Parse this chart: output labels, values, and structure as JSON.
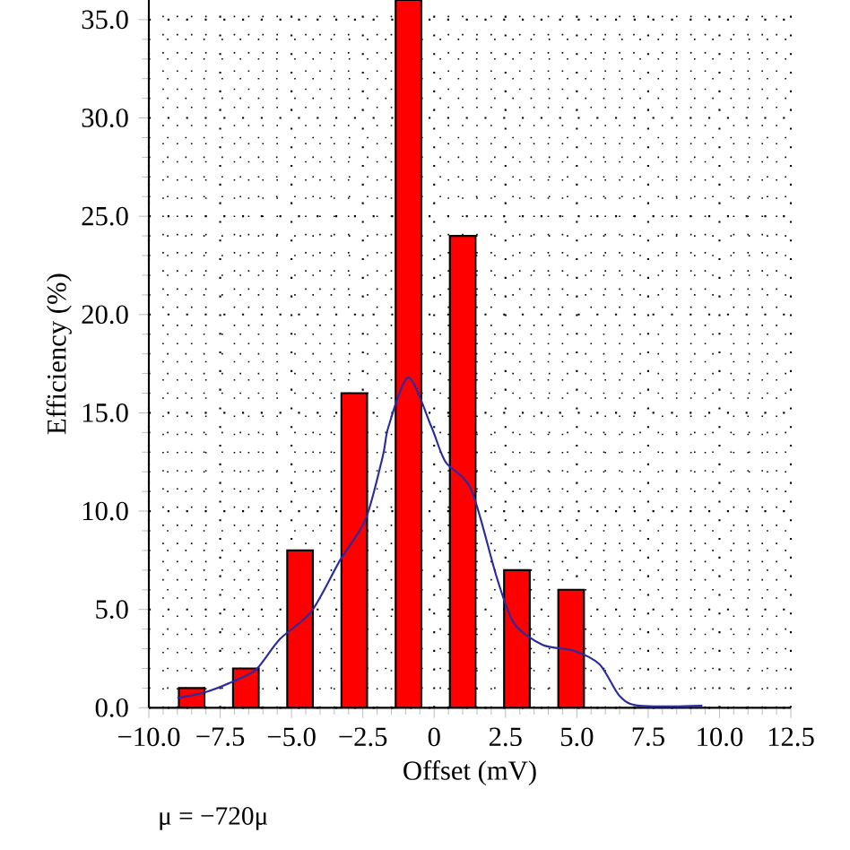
{
  "chart_data": {
    "type": "bar",
    "xlabel": "Offset (mV)",
    "ylabel": "Efficiency (%)",
    "xlim": [
      -10,
      12.5
    ],
    "ylim": [
      0,
      36
    ],
    "xticks": [
      {
        "value": -10,
        "label": "−10.0"
      },
      {
        "value": -7.5,
        "label": "−7.5"
      },
      {
        "value": -5,
        "label": "−5.0"
      },
      {
        "value": -2.5,
        "label": "−2.5"
      },
      {
        "value": 0,
        "label": "0"
      },
      {
        "value": 2.5,
        "label": "2.5"
      },
      {
        "value": 5,
        "label": "5.0"
      },
      {
        "value": 7.5,
        "label": "7.5"
      },
      {
        "value": 10,
        "label": "10.0"
      },
      {
        "value": 12.5,
        "label": "12.5"
      }
    ],
    "yticks": [
      {
        "value": 0,
        "label": "0.0"
      },
      {
        "value": 5,
        "label": "5.0"
      },
      {
        "value": 10,
        "label": "10.0"
      },
      {
        "value": 15,
        "label": "15.0"
      },
      {
        "value": 20,
        "label": "20.0"
      },
      {
        "value": 25,
        "label": "25.0"
      },
      {
        "value": 30,
        "label": "30.0"
      },
      {
        "value": 35,
        "label": "35.0"
      }
    ],
    "grid": true,
    "line_style": "solid",
    "series": [
      {
        "color": "#ff0000",
        "x": [
          -8.5,
          -6.6,
          -4.7,
          -2.8,
          -0.9,
          1.0,
          2.9,
          4.8
        ],
        "values": [
          1.0,
          2.0,
          8.0,
          16.0,
          36.0,
          24.0,
          7.0,
          6.0
        ]
      },
      {
        "type": "line",
        "color": "#2b2ba0",
        "x": [
          -9.0,
          -8.0,
          -6.8,
          -6.2,
          -5.4,
          -4.3,
          -3.3,
          -2.4,
          -1.8,
          -1.6,
          -0.9,
          -0.1,
          0.4,
          1.3,
          2.2,
          2.8,
          3.8,
          4.9,
          5.8,
          6.5,
          7.2,
          9.4
        ],
        "values": [
          0.5,
          0.8,
          1.5,
          2.0,
          3.5,
          4.9,
          7.5,
          9.6,
          12.8,
          14.3,
          16.8,
          14.3,
          12.5,
          11.1,
          6.6,
          4.3,
          3.2,
          2.9,
          2.2,
          0.6,
          0.1,
          0.1
        ]
      }
    ],
    "annotations": [
      "μ = −720μ"
    ]
  }
}
